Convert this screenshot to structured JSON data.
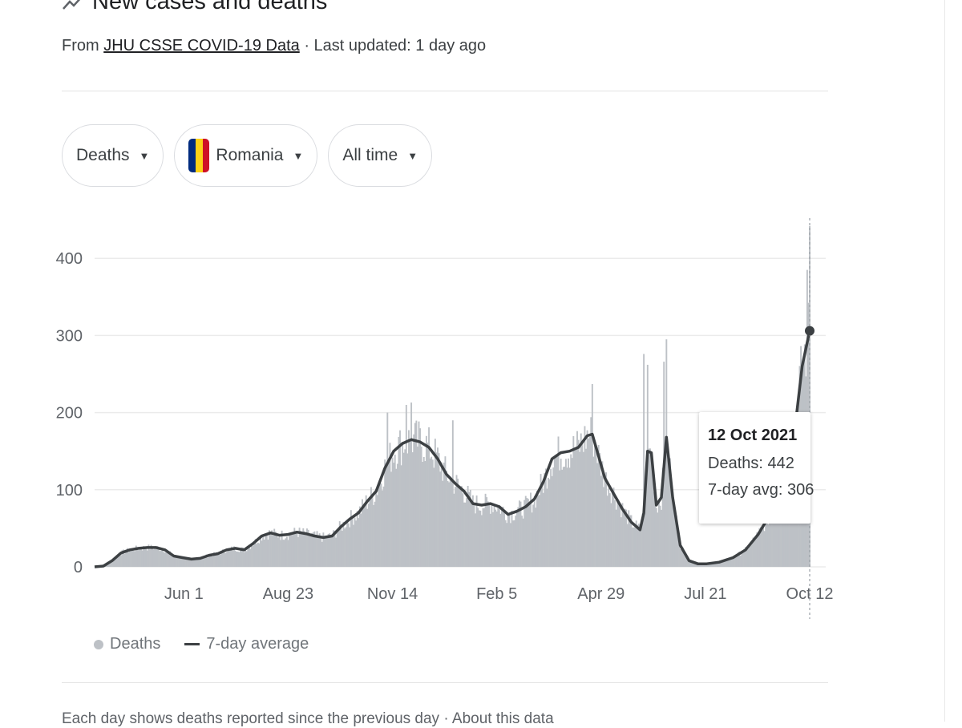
{
  "header": {
    "title": "New cases and deaths",
    "source_prefix": "From",
    "source_link": "JHU CSSE COVID-19 Data",
    "updated": "· Last updated: 1 day ago"
  },
  "filters": {
    "metric": "Deaths",
    "country": "Romania",
    "range": "All time",
    "flag_colors": [
      "#002B7F",
      "#FCD116",
      "#CE1126"
    ]
  },
  "tooltip": {
    "date": "12 Oct 2021",
    "deaths": "Deaths: 442",
    "avg": "7-day avg: 306"
  },
  "legend": {
    "deaths": "Deaths",
    "avg": "7-day average"
  },
  "footnote": "Each day shows deaths reported since the previous day · About this data",
  "colors": {
    "bars": "#bdc1c6",
    "line": "#3c4043",
    "grid": "#ebebeb"
  },
  "chart_data": {
    "type": "bar",
    "title": "New cases and deaths",
    "ylim": [
      0,
      440
    ],
    "yticks": [
      0,
      100,
      200,
      300,
      400
    ],
    "xtick_labels": [
      "Jun 1",
      "Aug 23",
      "Nov 14",
      "Feb 5",
      "Apr 29",
      "Jul 21",
      "Oct 12"
    ],
    "xticks": [
      "2020-06-01",
      "2020-08-23",
      "2020-11-14",
      "2021-02-05",
      "2021-04-29",
      "2021-07-21",
      "2021-10-12"
    ],
    "xrange": [
      "2020-03-22",
      "2021-10-12"
    ],
    "series": [
      {
        "name": "7-day average",
        "type": "line",
        "points": [
          [
            "2020-03-22",
            0
          ],
          [
            "2020-03-29",
            1
          ],
          [
            "2020-04-05",
            8
          ],
          [
            "2020-04-12",
            18
          ],
          [
            "2020-04-19",
            22
          ],
          [
            "2020-04-26",
            24
          ],
          [
            "2020-05-03",
            25
          ],
          [
            "2020-05-10",
            25
          ],
          [
            "2020-05-17",
            22
          ],
          [
            "2020-05-24",
            14
          ],
          [
            "2020-05-31",
            12
          ],
          [
            "2020-06-07",
            10
          ],
          [
            "2020-06-14",
            11
          ],
          [
            "2020-06-21",
            15
          ],
          [
            "2020-06-28",
            17
          ],
          [
            "2020-07-05",
            22
          ],
          [
            "2020-07-12",
            24
          ],
          [
            "2020-07-19",
            22
          ],
          [
            "2020-07-26",
            30
          ],
          [
            "2020-08-02",
            40
          ],
          [
            "2020-08-09",
            44
          ],
          [
            "2020-08-16",
            41
          ],
          [
            "2020-08-23",
            42
          ],
          [
            "2020-08-30",
            45
          ],
          [
            "2020-09-06",
            43
          ],
          [
            "2020-09-13",
            40
          ],
          [
            "2020-09-20",
            38
          ],
          [
            "2020-09-27",
            40
          ],
          [
            "2020-10-04",
            52
          ],
          [
            "2020-10-11",
            62
          ],
          [
            "2020-10-18",
            70
          ],
          [
            "2020-10-25",
            85
          ],
          [
            "2020-11-01",
            98
          ],
          [
            "2020-11-08",
            128
          ],
          [
            "2020-11-15",
            150
          ],
          [
            "2020-11-22",
            160
          ],
          [
            "2020-11-29",
            165
          ],
          [
            "2020-12-06",
            162
          ],
          [
            "2020-12-13",
            155
          ],
          [
            "2020-12-20",
            140
          ],
          [
            "2020-12-27",
            120
          ],
          [
            "2021-01-03",
            108
          ],
          [
            "2021-01-10",
            98
          ],
          [
            "2021-01-17",
            82
          ],
          [
            "2021-01-24",
            80
          ],
          [
            "2021-01-31",
            82
          ],
          [
            "2021-02-07",
            78
          ],
          [
            "2021-02-14",
            68
          ],
          [
            "2021-02-21",
            72
          ],
          [
            "2021-02-28",
            78
          ],
          [
            "2021-03-07",
            88
          ],
          [
            "2021-03-14",
            110
          ],
          [
            "2021-03-21",
            140
          ],
          [
            "2021-03-28",
            148
          ],
          [
            "2021-04-04",
            150
          ],
          [
            "2021-04-11",
            155
          ],
          [
            "2021-04-18",
            170
          ],
          [
            "2021-04-22",
            172
          ],
          [
            "2021-04-25",
            155
          ],
          [
            "2021-05-02",
            115
          ],
          [
            "2021-05-09",
            95
          ],
          [
            "2021-05-16",
            75
          ],
          [
            "2021-05-23",
            58
          ],
          [
            "2021-05-30",
            48
          ],
          [
            "2021-06-02",
            70
          ],
          [
            "2021-06-05",
            150
          ],
          [
            "2021-06-08",
            148
          ],
          [
            "2021-06-12",
            80
          ],
          [
            "2021-06-16",
            90
          ],
          [
            "2021-06-20",
            168
          ],
          [
            "2021-06-25",
            90
          ],
          [
            "2021-07-01",
            28
          ],
          [
            "2021-07-08",
            8
          ],
          [
            "2021-07-15",
            4
          ],
          [
            "2021-07-22",
            4
          ],
          [
            "2021-08-01",
            6
          ],
          [
            "2021-08-12",
            12
          ],
          [
            "2021-08-22",
            22
          ],
          [
            "2021-09-01",
            42
          ],
          [
            "2021-09-12",
            72
          ],
          [
            "2021-09-22",
            120
          ],
          [
            "2021-10-01",
            190
          ],
          [
            "2021-10-06",
            260
          ],
          [
            "2021-10-12",
            306
          ]
        ]
      },
      {
        "name": "Deaths",
        "type": "bar",
        "note": "daily values fluctuate around the 7-day average",
        "spikes": [
          [
            "2020-11-10",
            200
          ],
          [
            "2020-11-25",
            210
          ],
          [
            "2020-11-29",
            213
          ],
          [
            "2021-01-01",
            190
          ],
          [
            "2021-04-22",
            237
          ],
          [
            "2021-06-02",
            276
          ],
          [
            "2021-06-05",
            262
          ],
          [
            "2021-06-18",
            266
          ],
          [
            "2021-06-20",
            295
          ],
          [
            "2021-10-10",
            385
          ],
          [
            "2021-10-12",
            442
          ]
        ]
      }
    ],
    "highlight": {
      "date": "2021-10-12",
      "deaths": 442,
      "avg": 306
    }
  }
}
